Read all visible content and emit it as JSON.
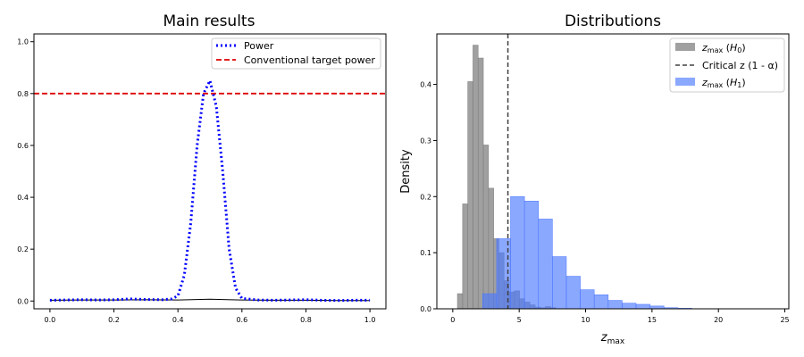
{
  "chart_data": [
    {
      "type": "line",
      "title": "Main results",
      "xlabel": "",
      "ylabel": "",
      "xlim": [
        -0.05,
        1.05
      ],
      "ylim": [
        -0.03,
        1.03
      ],
      "xticks": [
        0.0,
        0.2,
        0.4,
        0.6,
        0.8,
        1.0
      ],
      "xtick_labels": [
        "0.0",
        "0.2",
        "0.4",
        "0.6",
        "0.8",
        "1.0"
      ],
      "yticks": [
        0.0,
        0.2,
        0.4,
        0.6,
        0.8,
        1.0
      ],
      "ytick_labels": [
        "0.0",
        "0.2",
        "0.4",
        "0.6",
        "0.8",
        "1.0"
      ],
      "grid": false,
      "legend": "upper right",
      "series": [
        {
          "name": "Power",
          "style": "dotted",
          "color": "#0000ff",
          "x": [
            0.0,
            0.05,
            0.1,
            0.15,
            0.2,
            0.25,
            0.3,
            0.35,
            0.38,
            0.4,
            0.42,
            0.44,
            0.46,
            0.48,
            0.5,
            0.52,
            0.54,
            0.56,
            0.58,
            0.6,
            0.65,
            0.7,
            0.75,
            0.8,
            0.85,
            0.9,
            0.95,
            1.0
          ],
          "y": [
            0.003,
            0.004,
            0.005,
            0.004,
            0.005,
            0.008,
            0.006,
            0.005,
            0.008,
            0.02,
            0.1,
            0.3,
            0.6,
            0.8,
            0.85,
            0.75,
            0.5,
            0.2,
            0.05,
            0.01,
            0.004,
            0.003,
            0.004,
            0.005,
            0.003,
            0.002,
            0.003,
            0.003
          ]
        },
        {
          "name": "",
          "style": "solid",
          "color": "#000000",
          "x": [
            0.0,
            0.1,
            0.2,
            0.3,
            0.4,
            0.5,
            0.6,
            0.7,
            0.8,
            0.9,
            1.0
          ],
          "y": [
            0.003,
            0.004,
            0.004,
            0.005,
            0.004,
            0.007,
            0.004,
            0.003,
            0.003,
            0.002,
            0.002
          ]
        }
      ],
      "hlines": [
        {
          "name": "Conventional target power",
          "y": 0.8,
          "style": "dashed",
          "color": "#dd0000"
        }
      ]
    },
    {
      "type": "bar",
      "title": "Distributions",
      "xlabel": "z_max",
      "ylabel": "Density",
      "xlim": [
        -1.2,
        25.3
      ],
      "ylim": [
        0,
        0.49
      ],
      "xticks": [
        0,
        5,
        10,
        15,
        20,
        25
      ],
      "xtick_labels": [
        "0",
        "5",
        "10",
        "15",
        "20",
        "25"
      ],
      "yticks": [
        0.0,
        0.1,
        0.2,
        0.3,
        0.4
      ],
      "ytick_labels": [
        "0.0",
        "0.1",
        "0.2",
        "0.3",
        "0.4"
      ],
      "grid": false,
      "legend": "upper right",
      "critical_z": 4.15,
      "series": [
        {
          "name": "z_max (H_0)",
          "color": "#808080",
          "bin_width": 0.39,
          "bin_starts": [
            0.35,
            0.74,
            1.13,
            1.52,
            1.91,
            2.3,
            2.69,
            3.08,
            3.47,
            3.86,
            4.25,
            4.64,
            5.03,
            5.42,
            5.81,
            6.2,
            6.59,
            6.98,
            7.37
          ],
          "density": [
            0.027,
            0.187,
            0.405,
            0.47,
            0.447,
            0.292,
            0.215,
            0.125,
            0.1,
            0.05,
            0.03,
            0.032,
            0.018,
            0.012,
            0.007,
            0.003,
            0.002,
            0.004,
            0.002
          ]
        },
        {
          "name": "z_max (H_1)",
          "color": "#4d79ff",
          "bin_width": 1.05,
          "bin_starts": [
            2.25,
            3.3,
            4.35,
            5.4,
            6.45,
            7.5,
            8.55,
            9.6,
            10.65,
            11.7,
            12.75,
            13.8,
            14.85,
            15.9,
            16.95
          ],
          "density": [
            0.027,
            0.125,
            0.2,
            0.192,
            0.16,
            0.093,
            0.058,
            0.034,
            0.025,
            0.015,
            0.01,
            0.008,
            0.005,
            0.002,
            0.001
          ]
        }
      ],
      "vlines": [
        {
          "name": "Critical z (1 - α)",
          "x": 4.15,
          "style": "dashed",
          "color": "#404040"
        }
      ]
    }
  ]
}
